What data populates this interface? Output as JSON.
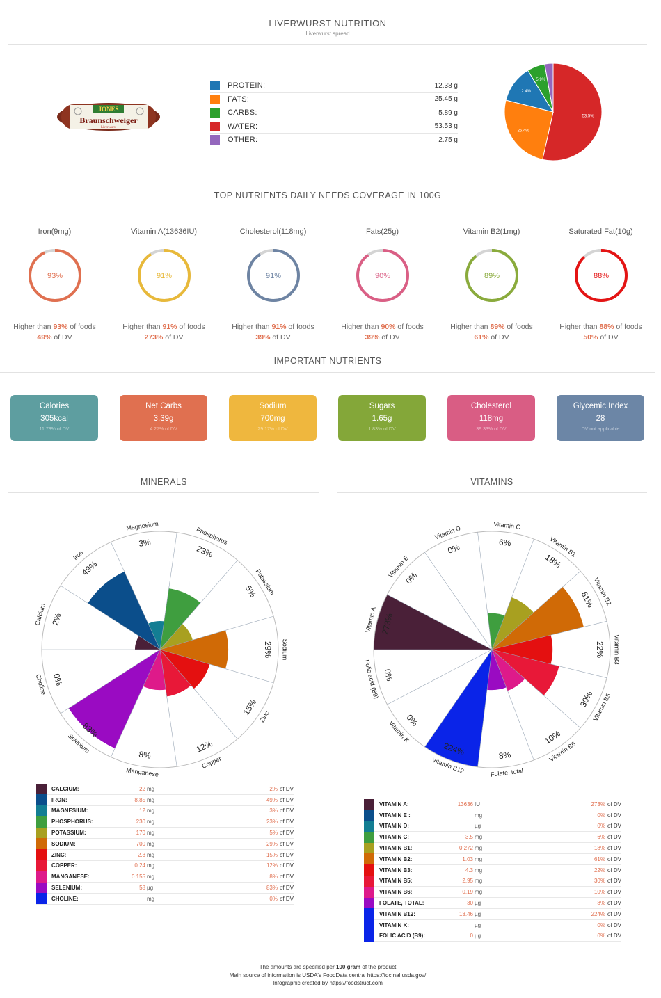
{
  "header": {
    "title": "LIVERWURST NUTRITION",
    "subtitle": "Liverwurst spread"
  },
  "product_image": {
    "brand": "JONES",
    "name": "Braunschweiger",
    "sub": "Liverwurst"
  },
  "macros": [
    {
      "label": "PROTEIN:",
      "value": "12.38 g",
      "color": "#1f77b4"
    },
    {
      "label": "FATS:",
      "value": "25.45 g",
      "color": "#ff7f0e"
    },
    {
      "label": "CARBS:",
      "value": "5.89 g",
      "color": "#2ca02c"
    },
    {
      "label": "WATER:",
      "value": "53.53 g",
      "color": "#d62728"
    },
    {
      "label": "OTHER:",
      "value": "2.75 g",
      "color": "#9467bd"
    }
  ],
  "chart_data": [
    {
      "type": "pie",
      "title": "",
      "categories": [
        "Protein",
        "Fats",
        "Carbs",
        "Water",
        "Other"
      ],
      "values": [
        12.4,
        25.4,
        5.9,
        53.5,
        2.8
      ],
      "labels": [
        "12.4%",
        "25.4%",
        "5.9%",
        "53.5%",
        ""
      ],
      "colors": [
        "#1f77b4",
        "#ff7f0e",
        "#2ca02c",
        "#d62728",
        "#9467bd"
      ]
    },
    {
      "type": "radial-bar",
      "title": "MINERALS",
      "categories": [
        "Calcium",
        "Iron",
        "Magnesium",
        "Phosphorus",
        "Potassium",
        "Sodium",
        "Zinc",
        "Copper",
        "Manganese",
        "Selenium",
        "Choline"
      ],
      "values": [
        2,
        49,
        3,
        23,
        5,
        29,
        15,
        12,
        8,
        83,
        0
      ],
      "labels": [
        "2%",
        "49%",
        "3%",
        "23%",
        "5%",
        "29%",
        "15%",
        "12%",
        "8%",
        "83%",
        "0%"
      ],
      "colors": [
        "#4a2038",
        "#0b4e8b",
        "#137e93",
        "#3f9e3f",
        "#a8a020",
        "#d06a06",
        "#e41010",
        "#e81838",
        "#de1a8a",
        "#9a0bc2",
        "#0a24e8"
      ]
    },
    {
      "type": "radial-bar",
      "title": "VITAMINS",
      "categories": [
        "Vitamin A",
        "Vitamin E",
        "Vitamin D",
        "Vitamin C",
        "Vitamin B1",
        "Vitamin B2",
        "Vitamin B3",
        "Vitamin B5",
        "Vitamin B6",
        "Folate, total",
        "Vitamin B12",
        "Vitamin K",
        "Folic acid (B9)"
      ],
      "values": [
        273,
        0,
        0,
        6,
        18,
        61,
        22,
        30,
        10,
        8,
        224,
        0,
        0
      ],
      "labels": [
        "273%",
        "0%",
        "0%",
        "6%",
        "18%",
        "61%",
        "22%",
        "30%",
        "10%",
        "8%",
        "224%",
        "0%",
        "0%"
      ],
      "colors": [
        "#4a2038",
        "#0b4e8b",
        "#137e93",
        "#3f9e3f",
        "#a8a020",
        "#d06a06",
        "#e41010",
        "#e81838",
        "#de1a8a",
        "#9a0bc2",
        "#0a24e8",
        "#0a24e8",
        "#0a24e8"
      ]
    }
  ],
  "coverage": {
    "title": "TOP NUTRIENTS DAILY NEEDS COVERAGE IN 100G",
    "items": [
      {
        "name": "Iron(9mg)",
        "pct": 93,
        "pct_label": "93%",
        "higher_label": "93%",
        "dv": "49%",
        "color": "#e07050"
      },
      {
        "name": "Vitamin A(13636IU)",
        "pct": 91,
        "pct_label": "91%",
        "higher_label": "91%",
        "dv": "273%",
        "color": "#e8b93a"
      },
      {
        "name": "Cholesterol(118mg)",
        "pct": 91,
        "pct_label": "91%",
        "higher_label": "91%",
        "dv": "39%",
        "color": "#6e84a3"
      },
      {
        "name": "Fats(25g)",
        "pct": 90,
        "pct_label": "90%",
        "higher_label": "90%",
        "dv": "39%",
        "color": "#da5f85"
      },
      {
        "name": "Vitamin B2(1mg)",
        "pct": 89,
        "pct_label": "89%",
        "higher_label": "89%",
        "dv": "61%",
        "color": "#8aab3c"
      },
      {
        "name": "Saturated Fat(10g)",
        "pct": 88,
        "pct_label": "88%",
        "higher_label": "88%",
        "dv": "50%",
        "color": "#e41414"
      }
    ],
    "higher_prefix": "Higher than",
    "higher_suffix": "of foods",
    "dv_suffix": "of DV"
  },
  "important": {
    "title": "IMPORTANT NUTRIENTS",
    "cards": [
      {
        "label": "Calories",
        "value": "305kcal",
        "dv": "11.73% of DV",
        "color": "#5e9ea0"
      },
      {
        "label": "Net Carbs",
        "value": "3.39g",
        "dv": "4.27% of DV",
        "color": "#e07050"
      },
      {
        "label": "Sodium",
        "value": "700mg",
        "dv": "29.17% of DV",
        "color": "#efb73e"
      },
      {
        "label": "Sugars",
        "value": "1.65g",
        "dv": "1.83% of DV",
        "color": "#84a739"
      },
      {
        "label": "Cholesterol",
        "value": "118mg",
        "dv": "39.33% of DV",
        "color": "#d95d84"
      },
      {
        "label": "Glycemic Index",
        "value": "28",
        "dv": "DV not applicable",
        "color": "#6c86a6"
      }
    ]
  },
  "minerals": {
    "title": "MINERALS",
    "rows": [
      {
        "name": "CALCIUM:",
        "amount": "22",
        "unit": "mg",
        "pct": "2%",
        "color": "#4a2038"
      },
      {
        "name": "IRON:",
        "amount": "8.85",
        "unit": "mg",
        "pct": "49%",
        "color": "#0b4e8b"
      },
      {
        "name": "MAGNESIUM:",
        "amount": "12",
        "unit": "mg",
        "pct": "3%",
        "color": "#137e93"
      },
      {
        "name": "PHOSPHORUS:",
        "amount": "230",
        "unit": "mg",
        "pct": "23%",
        "color": "#3f9e3f"
      },
      {
        "name": "POTASSIUM:",
        "amount": "170",
        "unit": "mg",
        "pct": "5%",
        "color": "#a8a020"
      },
      {
        "name": "SODIUM:",
        "amount": "700",
        "unit": "mg",
        "pct": "29%",
        "color": "#d06a06"
      },
      {
        "name": "ZINC:",
        "amount": "2.3",
        "unit": "mg",
        "pct": "15%",
        "color": "#e41010"
      },
      {
        "name": "COPPER:",
        "amount": "0.24",
        "unit": "mg",
        "pct": "12%",
        "color": "#e81838"
      },
      {
        "name": "MANGANESE:",
        "amount": "0.155",
        "unit": "mg",
        "pct": "8%",
        "color": "#de1a8a"
      },
      {
        "name": "SELENIUM:",
        "amount": "58",
        "unit": "µg",
        "pct": "83%",
        "color": "#9a0bc2"
      },
      {
        "name": "CHOLINE:",
        "amount": "",
        "unit": "mg",
        "pct": "0%",
        "color": "#0a24e8"
      }
    ],
    "of_dv": "of DV"
  },
  "vitamins": {
    "title": "VITAMINS",
    "rows": [
      {
        "name": "VITAMIN A:",
        "amount": "13636",
        "unit": "IU",
        "pct": "273%",
        "color": "#4a2038"
      },
      {
        "name": "VITAMIN E :",
        "amount": "",
        "unit": "mg",
        "pct": "0%",
        "color": "#0b4e8b"
      },
      {
        "name": "VITAMIN D:",
        "amount": "",
        "unit": "µg",
        "pct": "0%",
        "color": "#137e93"
      },
      {
        "name": "VITAMIN C:",
        "amount": "3.5",
        "unit": "mg",
        "pct": "6%",
        "color": "#3f9e3f"
      },
      {
        "name": "VITAMIN B1:",
        "amount": "0.272",
        "unit": "mg",
        "pct": "18%",
        "color": "#a8a020"
      },
      {
        "name": "VITAMIN B2:",
        "amount": "1.03",
        "unit": "mg",
        "pct": "61%",
        "color": "#d06a06"
      },
      {
        "name": "VITAMIN B3:",
        "amount": "4.3",
        "unit": "mg",
        "pct": "22%",
        "color": "#e41010"
      },
      {
        "name": "VITAMIN B5:",
        "amount": "2.95",
        "unit": "mg",
        "pct": "30%",
        "color": "#e81838"
      },
      {
        "name": "VITAMIN B6:",
        "amount": "0.19",
        "unit": "mg",
        "pct": "10%",
        "color": "#de1a8a"
      },
      {
        "name": "FOLATE, TOTAL:",
        "amount": "30",
        "unit": "µg",
        "pct": "8%",
        "color": "#9a0bc2"
      },
      {
        "name": "VITAMIN B12:",
        "amount": "13.46",
        "unit": "µg",
        "pct": "224%",
        "color": "#0a24e8"
      },
      {
        "name": "VITAMIN K:",
        "amount": "",
        "unit": "µg",
        "pct": "0%",
        "color": "#0a24e8"
      },
      {
        "name": "FOLIC ACID (B9):",
        "amount": "0",
        "unit": "µg",
        "pct": "0%",
        "color": "#0a24e8"
      }
    ],
    "of_dv": "of DV"
  },
  "footer": {
    "line1_pre": "The amounts are specified per",
    "line1_bold": "100 gram",
    "line1_post": "of the product",
    "line2": "Main source of information is USDA's FoodData central https://fdc.nal.usda.gov/",
    "line3": "Infographic created by https://foodstruct.com"
  }
}
